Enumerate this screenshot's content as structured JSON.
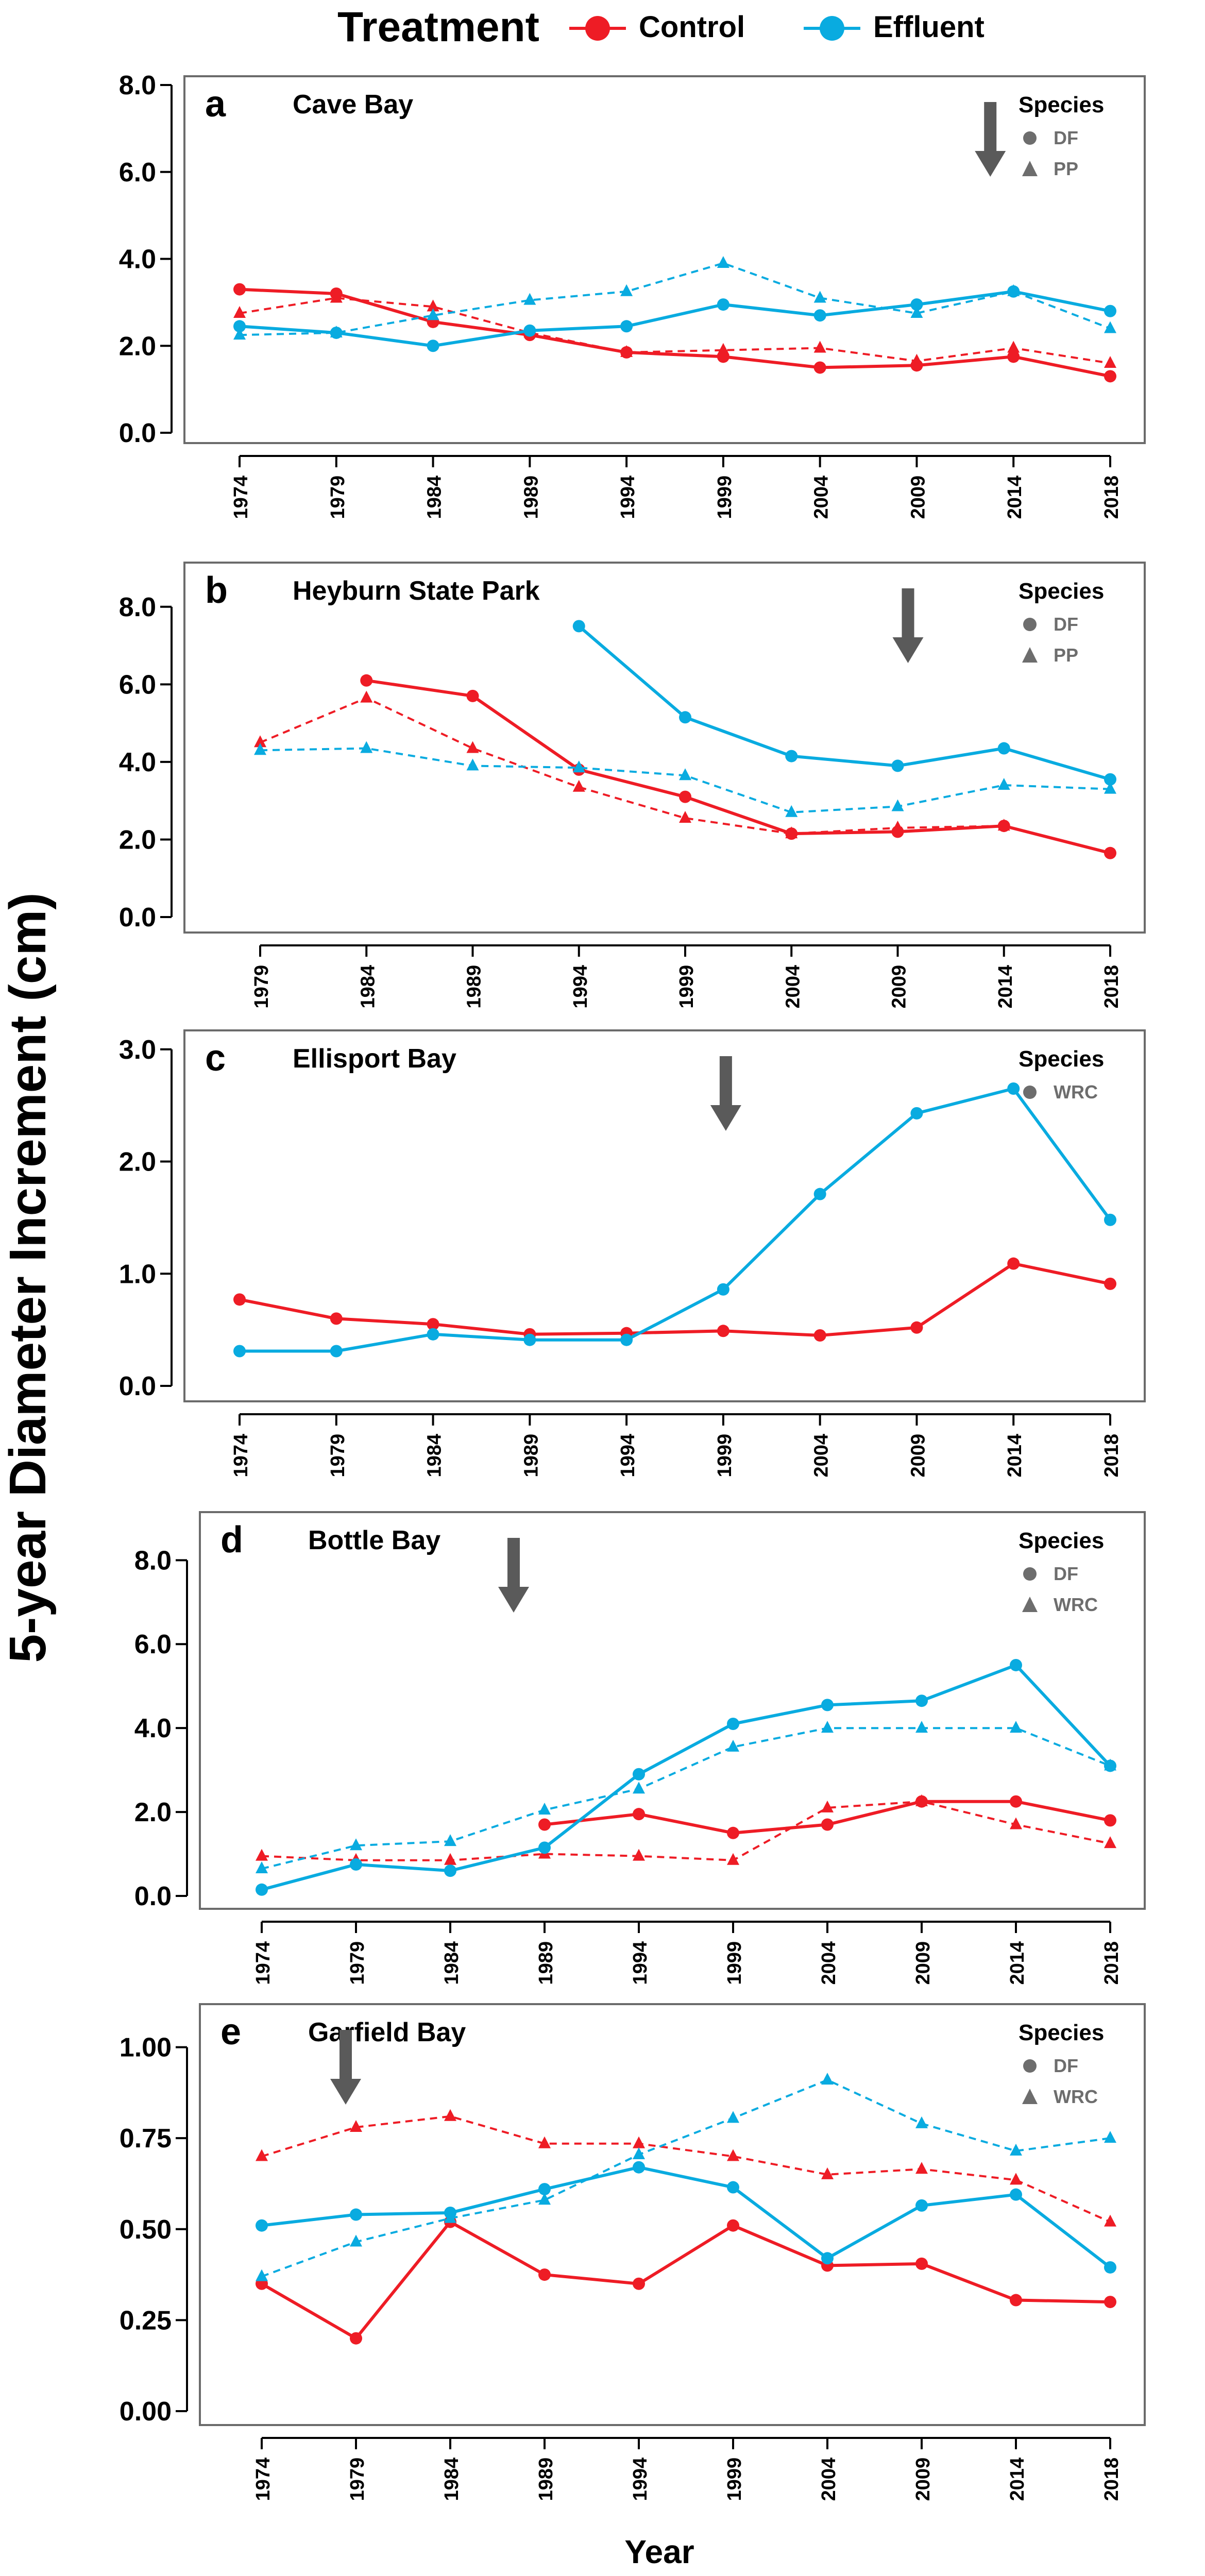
{
  "legend": {
    "title": "Treatment",
    "entries": [
      {
        "label": "Control",
        "color": "#ee1c25"
      },
      {
        "label": "Effluent",
        "color": "#09abe0"
      }
    ]
  },
  "axes": {
    "ylabel": "5-year Diameter Increment (cm)",
    "xlabel": "Year"
  },
  "colors": {
    "control": "#ee1c25",
    "effluent": "#09abe0",
    "arrow": "#5a5a5a",
    "legend_symbol": "#6d6d6d"
  },
  "chart_data": [
    {
      "type": "line",
      "panel": "a",
      "title": "Cave Bay",
      "categories": [
        "1974",
        "1979",
        "1984",
        "1989",
        "1994",
        "1999",
        "2004",
        "2009",
        "2014",
        "2018"
      ],
      "ylim": [
        0,
        8
      ],
      "yticks": [
        "0.0",
        "2.0",
        "4.0",
        "6.0",
        "8.0"
      ],
      "species_title": "Species",
      "species": [
        {
          "name": "DF",
          "marker": "circle",
          "line": "solid"
        },
        {
          "name": "PP",
          "marker": "triangle",
          "line": "dashed"
        }
      ],
      "arrow_year": "2014",
      "series": [
        {
          "name": "Control DF",
          "treatment": "control",
          "species": "DF",
          "values": [
            3.3,
            3.2,
            2.55,
            2.25,
            1.85,
            1.75,
            1.5,
            1.55,
            1.75,
            1.3
          ]
        },
        {
          "name": "Control PP",
          "treatment": "control",
          "species": "PP",
          "values": [
            2.75,
            3.1,
            2.9,
            2.3,
            1.85,
            1.9,
            1.95,
            1.65,
            1.95,
            1.6
          ]
        },
        {
          "name": "Effluent DF",
          "treatment": "effluent",
          "species": "DF",
          "values": [
            2.45,
            2.3,
            2.0,
            2.35,
            2.45,
            2.95,
            2.7,
            2.95,
            3.25,
            2.8
          ]
        },
        {
          "name": "Effluent PP",
          "treatment": "effluent",
          "species": "PP",
          "values": [
            2.25,
            2.3,
            2.7,
            3.05,
            3.25,
            3.9,
            3.1,
            2.75,
            3.25,
            2.4
          ]
        }
      ]
    },
    {
      "type": "line",
      "panel": "b",
      "title": "Heyburn State Park",
      "categories": [
        "1979",
        "1984",
        "1989",
        "1994",
        "1999",
        "2004",
        "2009",
        "2014",
        "2018"
      ],
      "ylim": [
        0,
        8
      ],
      "yticks": [
        "0.0",
        "2.0",
        "4.0",
        "6.0",
        "8.0"
      ],
      "species_title": "Species",
      "species": [
        {
          "name": "DF",
          "marker": "circle",
          "line": "solid"
        },
        {
          "name": "PP",
          "marker": "triangle",
          "line": "dashed"
        }
      ],
      "arrow_year": "2009",
      "series": [
        {
          "name": "Control DF",
          "treatment": "control",
          "species": "DF",
          "values": [
            null,
            6.1,
            5.7,
            3.8,
            3.1,
            2.15,
            2.2,
            2.35,
            1.65
          ]
        },
        {
          "name": "Control PP",
          "treatment": "control",
          "species": "PP",
          "values": [
            4.5,
            5.65,
            4.35,
            3.35,
            2.55,
            2.15,
            2.3,
            2.35,
            null
          ]
        },
        {
          "name": "Effluent DF",
          "treatment": "effluent",
          "species": "DF",
          "values": [
            null,
            null,
            null,
            7.5,
            5.15,
            4.15,
            3.9,
            4.35,
            3.55
          ]
        },
        {
          "name": "Effluent PP",
          "treatment": "effluent",
          "species": "PP",
          "values": [
            4.3,
            4.35,
            3.9,
            3.85,
            3.65,
            2.7,
            2.85,
            3.4,
            3.3
          ]
        }
      ]
    },
    {
      "type": "line",
      "panel": "c",
      "title": "Ellisport Bay",
      "categories": [
        "1974",
        "1979",
        "1984",
        "1989",
        "1994",
        "1999",
        "2004",
        "2009",
        "2014",
        "2018"
      ],
      "ylim": [
        0,
        3
      ],
      "yticks": [
        "0.0",
        "1.0",
        "2.0",
        "3.0"
      ],
      "species_title": "Species",
      "species": [
        {
          "name": "WRC",
          "marker": "circle",
          "line": "solid"
        }
      ],
      "arrow_year": "1999",
      "series": [
        {
          "name": "Control WRC",
          "treatment": "control",
          "species": "WRC",
          "values": [
            0.77,
            0.6,
            0.55,
            0.46,
            0.47,
            0.49,
            0.45,
            0.52,
            1.09,
            0.91
          ]
        },
        {
          "name": "Effluent WRC",
          "treatment": "effluent",
          "species": "WRC",
          "values": [
            0.31,
            0.31,
            0.46,
            0.41,
            0.41,
            0.86,
            1.71,
            2.43,
            2.65,
            1.48
          ]
        }
      ]
    },
    {
      "type": "line",
      "panel": "d",
      "title": "Bottle Bay",
      "categories": [
        "1974",
        "1979",
        "1984",
        "1989",
        "1994",
        "1999",
        "2004",
        "2009",
        "2014",
        "2018"
      ],
      "ylim": [
        0,
        8
      ],
      "yticks": [
        "0.0",
        "2.0",
        "4.0",
        "6.0",
        "8.0"
      ],
      "species_title": "Species",
      "species": [
        {
          "name": "DF",
          "marker": "circle",
          "line": "solid"
        },
        {
          "name": "WRC",
          "marker": "triangle",
          "line": "dashed"
        }
      ],
      "arrow_year": "1989",
      "series": [
        {
          "name": "Control DF",
          "treatment": "control",
          "species": "DF",
          "values": [
            null,
            null,
            null,
            1.7,
            1.95,
            1.5,
            1.7,
            2.25,
            2.25,
            1.8
          ]
        },
        {
          "name": "Control WRC",
          "treatment": "control",
          "species": "WRC",
          "values": [
            0.95,
            0.85,
            0.85,
            1.0,
            0.95,
            0.85,
            2.1,
            2.25,
            1.7,
            1.25
          ]
        },
        {
          "name": "Effluent DF",
          "treatment": "effluent",
          "species": "DF",
          "values": [
            0.15,
            0.75,
            0.6,
            1.15,
            2.9,
            4.1,
            4.55,
            4.65,
            5.5,
            3.1
          ]
        },
        {
          "name": "Effluent WRC",
          "treatment": "effluent",
          "species": "WRC",
          "values": [
            0.65,
            1.2,
            1.3,
            2.05,
            2.55,
            3.55,
            4.0,
            4.0,
            4.0,
            3.1
          ]
        }
      ]
    },
    {
      "type": "line",
      "panel": "e",
      "title": "Garfield Bay",
      "categories": [
        "1974",
        "1979",
        "1984",
        "1989",
        "1994",
        "1999",
        "2004",
        "2009",
        "2014",
        "2018"
      ],
      "ylim": [
        0,
        1
      ],
      "yticks": [
        "0.00",
        "0.25",
        "0.50",
        "0.75",
        "1.00"
      ],
      "species_title": "Species",
      "species": [
        {
          "name": "DF",
          "marker": "circle",
          "line": "solid"
        },
        {
          "name": "WRC",
          "marker": "triangle",
          "line": "dashed"
        }
      ],
      "arrow_year": "1979",
      "series": [
        {
          "name": "Control DF",
          "treatment": "control",
          "species": "DF",
          "values": [
            0.35,
            0.2,
            0.52,
            0.375,
            0.35,
            0.51,
            0.4,
            0.405,
            0.305,
            0.3
          ]
        },
        {
          "name": "Control WRC",
          "treatment": "control",
          "species": "WRC",
          "values": [
            0.7,
            0.78,
            0.81,
            0.735,
            0.735,
            0.7,
            0.65,
            0.665,
            0.635,
            0.52
          ]
        },
        {
          "name": "Effluent DF",
          "treatment": "effluent",
          "species": "DF",
          "values": [
            0.51,
            0.54,
            0.545,
            0.61,
            0.67,
            0.615,
            0.42,
            0.565,
            0.595,
            0.395
          ]
        },
        {
          "name": "Effluent WRC",
          "treatment": "effluent",
          "species": "WRC",
          "values": [
            0.37,
            0.465,
            0.53,
            0.58,
            0.705,
            0.805,
            0.91,
            0.79,
            0.715,
            0.75
          ]
        }
      ]
    }
  ]
}
